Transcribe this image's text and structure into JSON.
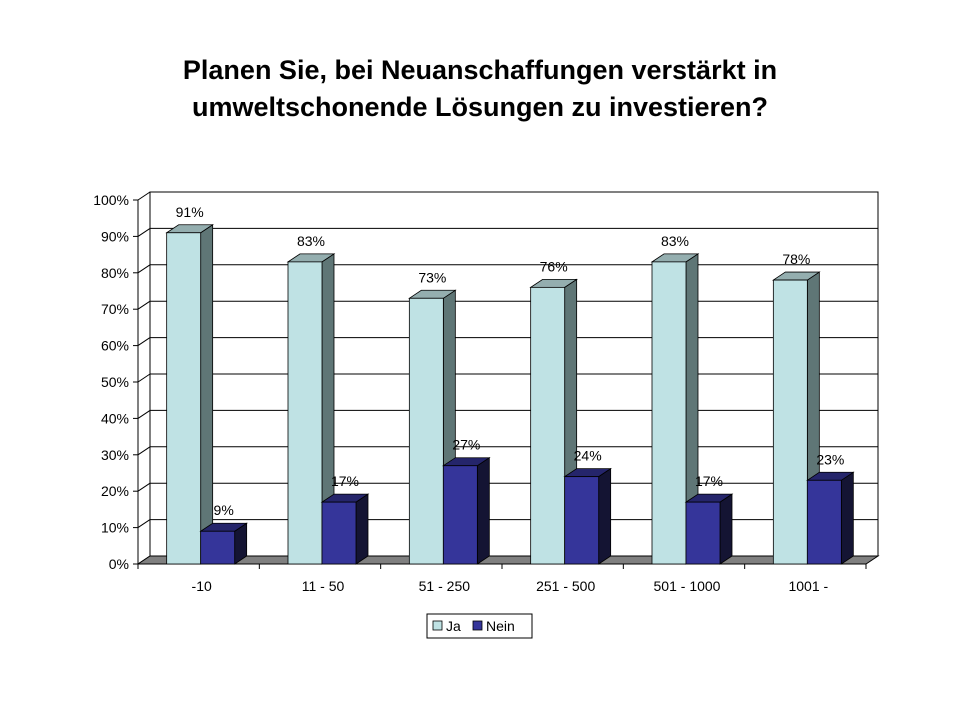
{
  "title_lines": [
    "Planen Sie, bei Neuanschaffungen verstärkt in",
    "umweltschonende Lösungen zu investieren?"
  ],
  "colors": {
    "ja_front": "#bfe2e4",
    "ja_side": "#5f7676",
    "ja_top": "#94aeaf",
    "nein_front": "#35359a",
    "nein_side": "#141433",
    "nein_top": "#25256b",
    "floor": "#808080",
    "wall": "#ffffff"
  },
  "chart_data": {
    "type": "bar",
    "style": "3d-clustered-column",
    "categories": [
      "-10",
      "11 - 50",
      "51 - 250",
      "251 - 500",
      "501 - 1000",
      "1001 -"
    ],
    "series": [
      {
        "name": "Ja",
        "values": [
          91,
          83,
          73,
          76,
          83,
          78
        ],
        "labels": [
          "91%",
          "83%",
          "73%",
          "76%",
          "83%",
          "78%"
        ]
      },
      {
        "name": "Nein",
        "values": [
          9,
          17,
          27,
          24,
          17,
          23
        ],
        "labels": [
          "9%",
          "17%",
          "27%",
          "24%",
          "17%",
          "23%"
        ]
      }
    ],
    "ylim": [
      0,
      100
    ],
    "yticks": [
      "0%",
      "10%",
      "20%",
      "30%",
      "40%",
      "50%",
      "60%",
      "70%",
      "80%",
      "90%",
      "100%"
    ],
    "grid": true,
    "legend_position": "bottom"
  }
}
